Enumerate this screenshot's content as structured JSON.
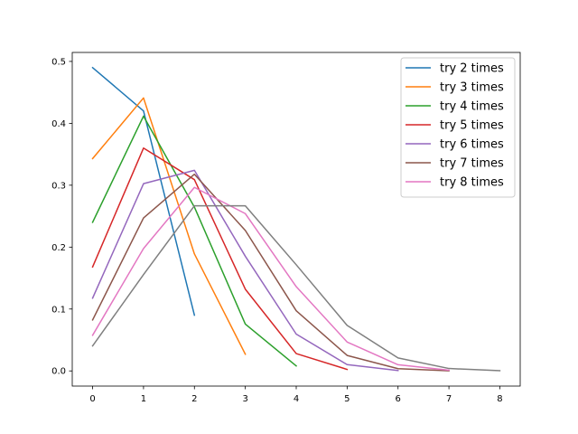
{
  "chart_data": {
    "type": "line",
    "title": "",
    "xlabel": "",
    "ylabel": "",
    "xlim": [
      -0.4,
      8.4
    ],
    "ylim": [
      -0.0245,
      0.5145
    ],
    "xticks": [
      0,
      1,
      2,
      3,
      4,
      5,
      6,
      7,
      8
    ],
    "yticks": [
      0.0,
      0.1,
      0.2,
      0.3,
      0.4,
      0.5
    ],
    "ytick_labels": [
      "0.0",
      "0.1",
      "0.2",
      "0.3",
      "0.4",
      "0.5"
    ],
    "grid": false,
    "legend_position": "top-right",
    "series": [
      {
        "name": "try 2 times",
        "color": "#1f77b4",
        "in_legend": true,
        "x": [
          0,
          1,
          2
        ],
        "y": [
          0.49,
          0.42,
          0.09
        ]
      },
      {
        "name": "try 3 times",
        "color": "#ff7f0e",
        "in_legend": true,
        "x": [
          0,
          1,
          2,
          3
        ],
        "y": [
          0.343,
          0.441,
          0.189,
          0.027
        ]
      },
      {
        "name": "try 4 times",
        "color": "#2ca02c",
        "in_legend": true,
        "x": [
          0,
          1,
          2,
          3,
          4
        ],
        "y": [
          0.2401,
          0.4116,
          0.2646,
          0.0756,
          0.0081
        ]
      },
      {
        "name": "try 5 times",
        "color": "#d62728",
        "in_legend": true,
        "x": [
          0,
          1,
          2,
          3,
          4,
          5
        ],
        "y": [
          0.168,
          0.36,
          0.309,
          0.132,
          0.028,
          0.0024
        ]
      },
      {
        "name": "try 6 times",
        "color": "#9467bd",
        "in_legend": true,
        "x": [
          0,
          1,
          2,
          3,
          4,
          5,
          6
        ],
        "y": [
          0.1176,
          0.3025,
          0.3241,
          0.1852,
          0.0595,
          0.0102,
          0.0007
        ]
      },
      {
        "name": "try 7 times",
        "color": "#8c564b",
        "in_legend": true,
        "x": [
          0,
          1,
          2,
          3,
          4,
          5,
          6,
          7
        ],
        "y": [
          0.0824,
          0.2471,
          0.3177,
          0.2269,
          0.0972,
          0.025,
          0.0036,
          0.0002
        ]
      },
      {
        "name": "try 8 times",
        "color": "#e377c2",
        "in_legend": true,
        "x": [
          0,
          1,
          2,
          3,
          4,
          5,
          6,
          7
        ],
        "y": [
          0.0576,
          0.1977,
          0.2965,
          0.2541,
          0.1361,
          0.0467,
          0.01,
          0.0012
        ]
      },
      {
        "name": "",
        "color": "#7f7f7f",
        "in_legend": false,
        "x": [
          0,
          1,
          2,
          3,
          4,
          5,
          6,
          7,
          8
        ],
        "y": [
          0.0404,
          0.1556,
          0.2668,
          0.2668,
          0.1715,
          0.0735,
          0.021,
          0.0039,
          0.0003
        ]
      }
    ]
  }
}
